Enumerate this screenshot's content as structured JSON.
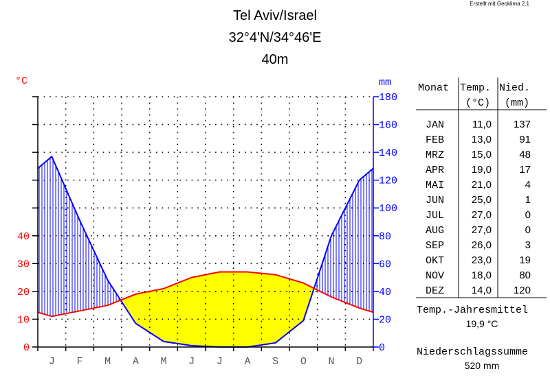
{
  "credit": "Erstellt mit Geoklima 2.1",
  "title": {
    "station": "Tel Aviv/Israel",
    "coords": "32°4'N/34°46'E",
    "elevation": "40m"
  },
  "chart_data": {
    "type": "line",
    "title": "Tel Aviv/Israel",
    "left_axis_unit": "°C",
    "right_axis_unit": "mm",
    "left_ticks": [
      "0",
      "10",
      "20",
      "30",
      "40"
    ],
    "right_ticks": [
      "0",
      "20",
      "40",
      "60",
      "80",
      "100",
      "120",
      "140",
      "160",
      "180"
    ],
    "categories": [
      "J",
      "F",
      "M",
      "A",
      "M",
      "J",
      "J",
      "A",
      "S",
      "O",
      "N",
      "D"
    ],
    "ylim_temp": [
      0,
      90
    ],
    "ylim_precip": [
      0,
      180
    ],
    "grid": true,
    "series": [
      {
        "name": "Temp.",
        "unit": "°C",
        "color": "#ff0000",
        "values": [
          11.0,
          13.0,
          15.0,
          19.0,
          21.0,
          25.0,
          27.0,
          27.0,
          26.0,
          23.0,
          18.0,
          14.0
        ]
      },
      {
        "name": "Nied.",
        "unit": "mm",
        "color": "#0000ff",
        "values": [
          137,
          91,
          48,
          17,
          4,
          1,
          0,
          0,
          3,
          19,
          80,
          120
        ]
      }
    ],
    "fill_colors": {
      "arid": "#ffff00",
      "humid": "#0000ff"
    }
  },
  "table": {
    "headers": [
      {
        "line1": "Monat",
        "line2": ""
      },
      {
        "line1": "Temp.",
        "line2": "(°C)"
      },
      {
        "line1": "Nied.",
        "line2": "(mm)"
      }
    ],
    "rows": [
      {
        "month": "JAN",
        "temp": "11,0",
        "precip": "137"
      },
      {
        "month": "FEB",
        "temp": "13,0",
        "precip": "91"
      },
      {
        "month": "MRZ",
        "temp": "15,0",
        "precip": "48"
      },
      {
        "month": "APR",
        "temp": "19,0",
        "precip": "17"
      },
      {
        "month": "MAI",
        "temp": "21,0",
        "precip": "4"
      },
      {
        "month": "JUN",
        "temp": "25,0",
        "precip": "1"
      },
      {
        "month": "JUL",
        "temp": "27,0",
        "precip": "0"
      },
      {
        "month": "AUG",
        "temp": "27,0",
        "precip": "0"
      },
      {
        "month": "SEP",
        "temp": "26,0",
        "precip": "3"
      },
      {
        "month": "OKT",
        "temp": "23,0",
        "precip": "19"
      },
      {
        "month": "NOV",
        "temp": "18,0",
        "precip": "80"
      },
      {
        "month": "DEZ",
        "temp": "14,0",
        "precip": "120"
      }
    ]
  },
  "summary": {
    "temp_label": "Temp.-Jahresmittel",
    "temp_value": "19,9 °C",
    "precip_label": "Niederschlagssumme",
    "precip_value": "520 mm"
  }
}
